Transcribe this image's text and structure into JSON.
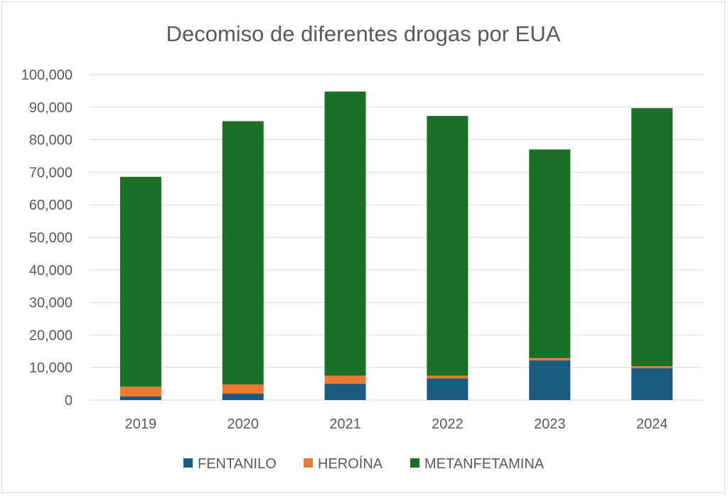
{
  "chart_data": {
    "type": "bar",
    "stacked": true,
    "title": "Decomiso de diferentes drogas por EUA",
    "xlabel": "",
    "ylabel": "",
    "categories": [
      "2019",
      "2020",
      "2021",
      "2022",
      "2023",
      "2024"
    ],
    "series": [
      {
        "name": "FENTANILO",
        "color": "#1b5b80",
        "values": [
          1100,
          2000,
          5000,
          6700,
          12200,
          9800
        ]
      },
      {
        "name": "HEROÍNA",
        "color": "#ec7a34",
        "values": [
          3000,
          2800,
          2500,
          800,
          700,
          600
        ]
      },
      {
        "name": "METANFETAMINA",
        "color": "#1d6e27",
        "values": [
          64500,
          80900,
          87300,
          79800,
          64100,
          79300
        ]
      }
    ],
    "ylim": [
      0,
      100000
    ],
    "yticks": [
      "0",
      "10,000",
      "20,000",
      "30,000",
      "40,000",
      "50,000",
      "60,000",
      "70,000",
      "80,000",
      "90,000",
      "100,000"
    ],
    "grid": true,
    "legend_position": "bottom"
  }
}
